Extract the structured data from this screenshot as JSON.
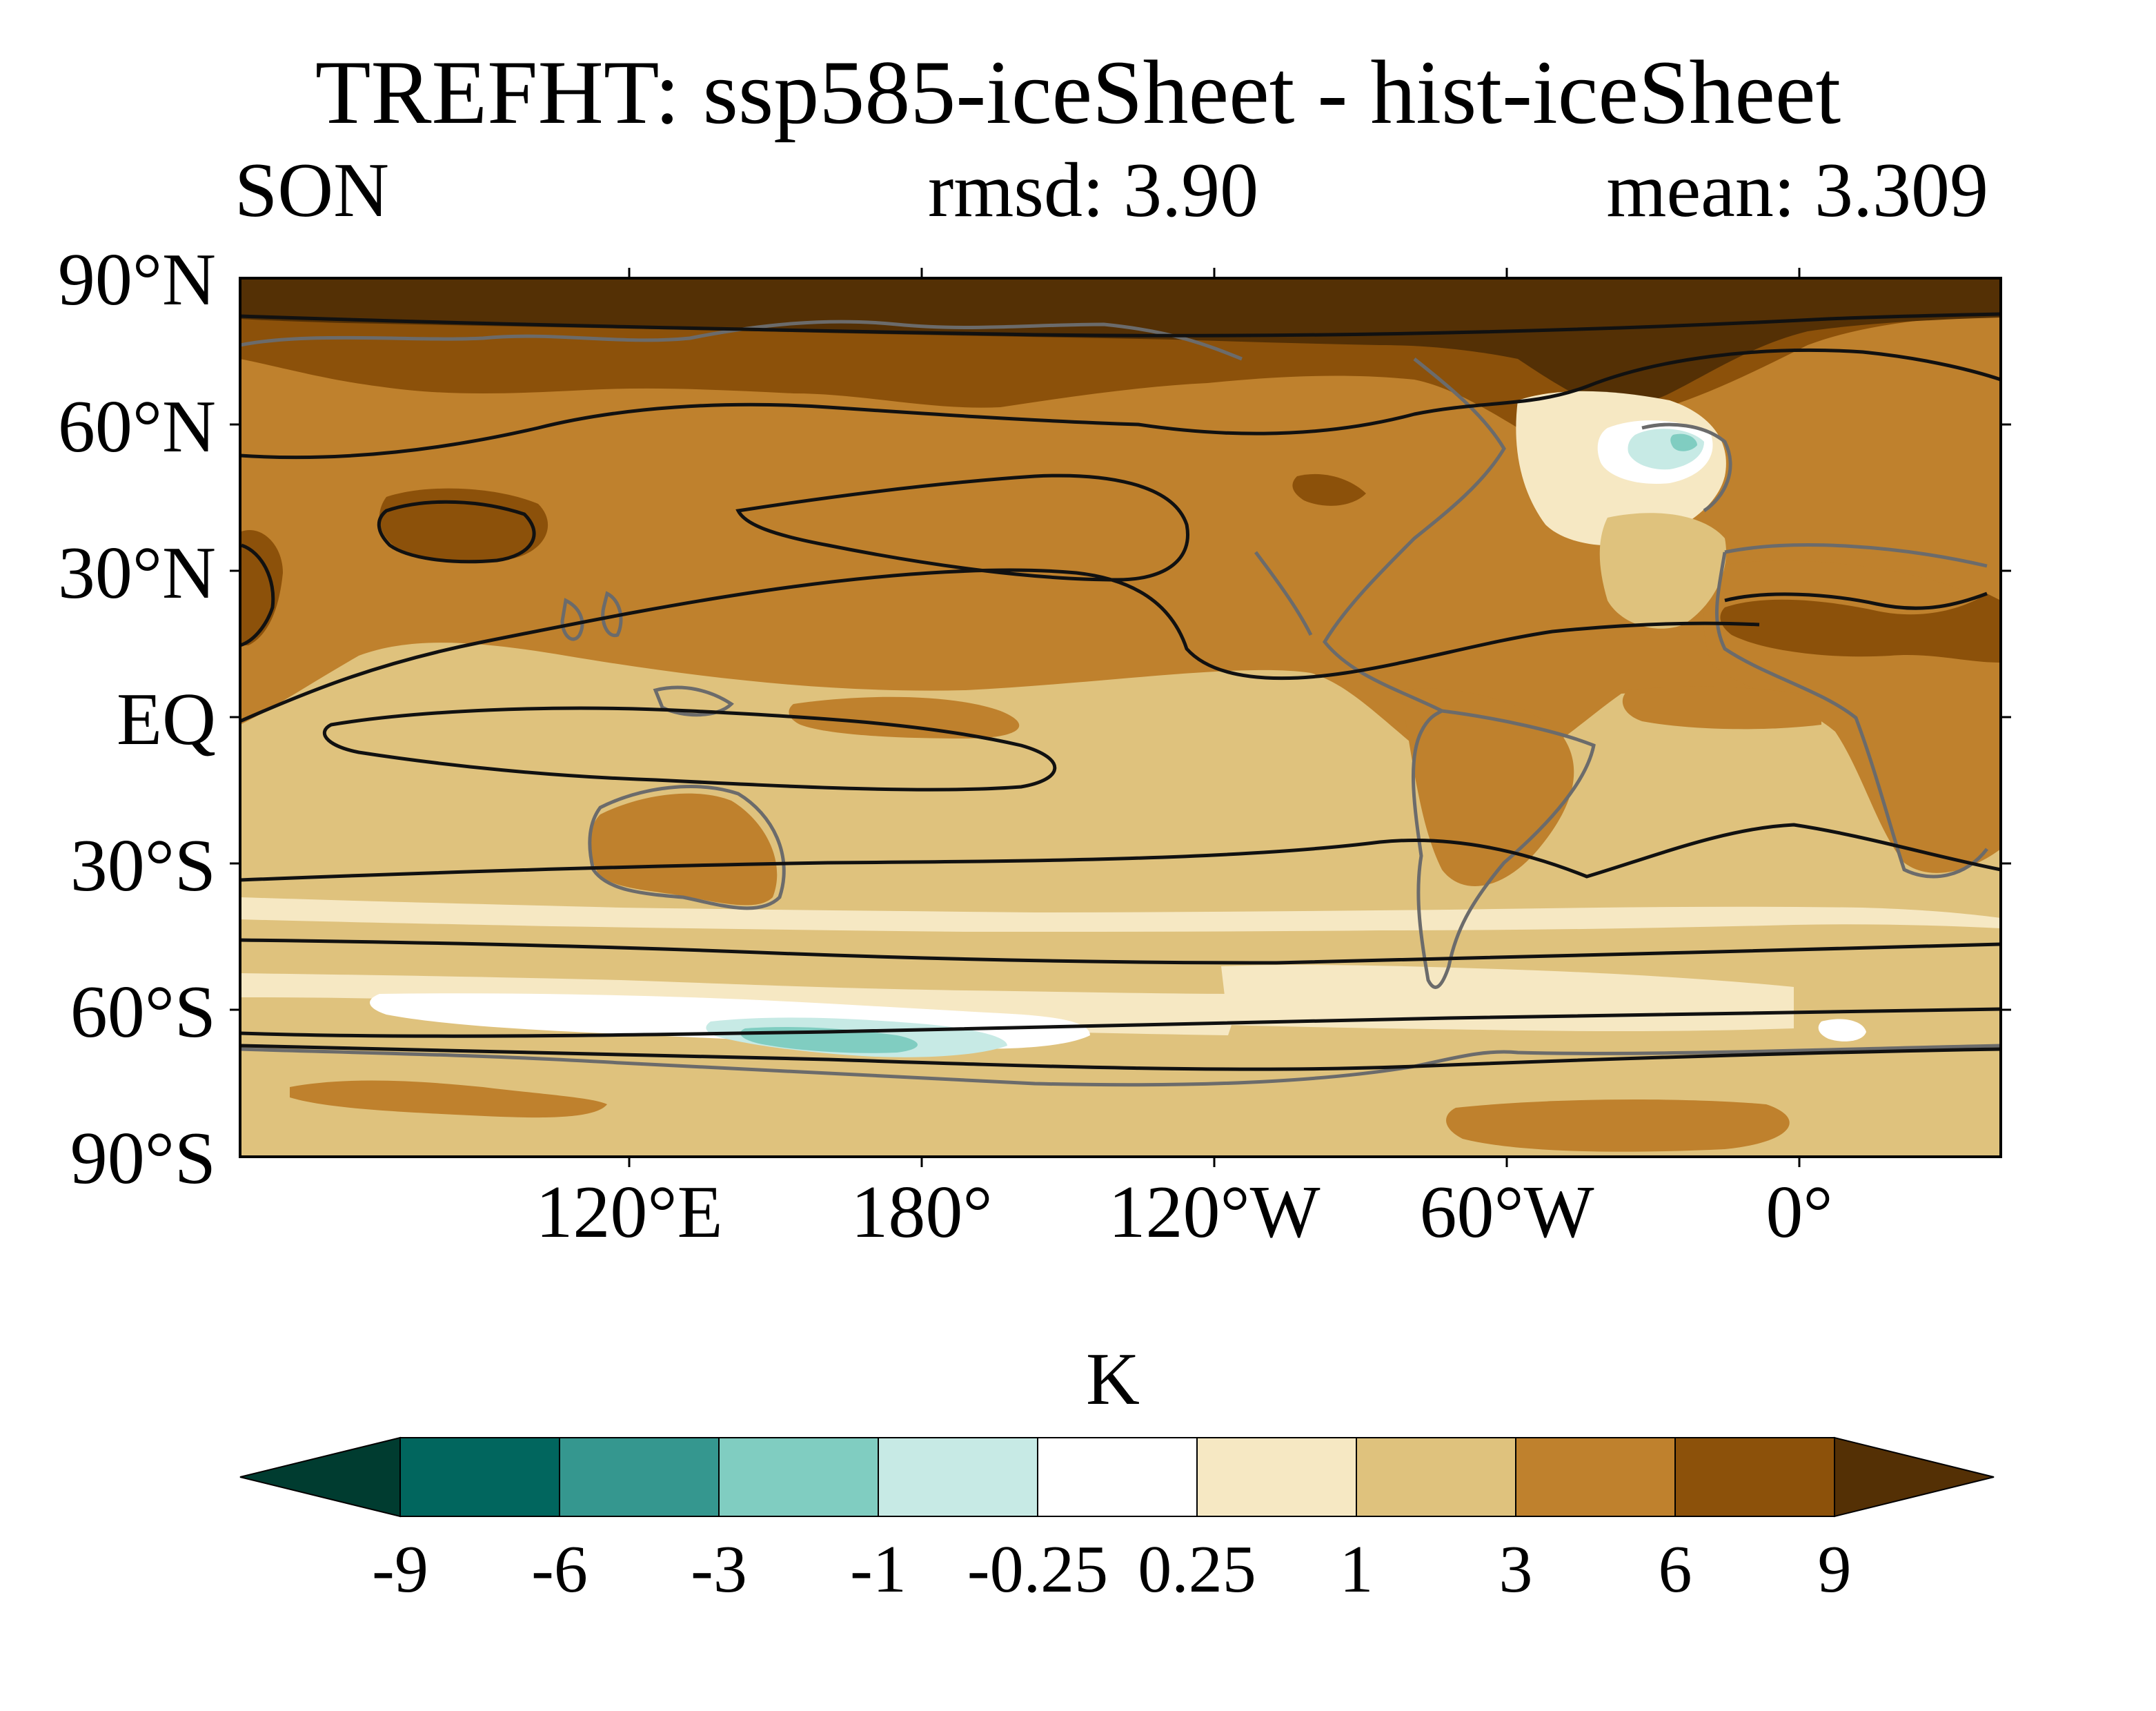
{
  "title": "TREFHT: ssp585-iceSheet - hist-iceSheet",
  "season": "SON",
  "rmsd": "rmsd: 3.90",
  "mean": "mean: 3.309",
  "lat_labels": [
    "90°N",
    "60°N",
    "30°N",
    "EQ",
    "30°S",
    "60°S",
    "90°S"
  ],
  "lon_labels": [
    "120°E",
    "180°",
    "120°W",
    "60°W",
    "0°"
  ],
  "colorbar": {
    "units": "K",
    "levels": [
      "-9",
      "-6",
      "-3",
      "-1",
      "-0.25",
      "0.25",
      "1",
      "3",
      "6",
      "9"
    ],
    "colors": [
      "#003c30",
      "#01665e",
      "#35978f",
      "#80cdc1",
      "#c7eae5",
      "#ffffff",
      "#f6e8c3",
      "#dfc27d",
      "#bf812d",
      "#8c510a",
      "#543005"
    ]
  }
}
